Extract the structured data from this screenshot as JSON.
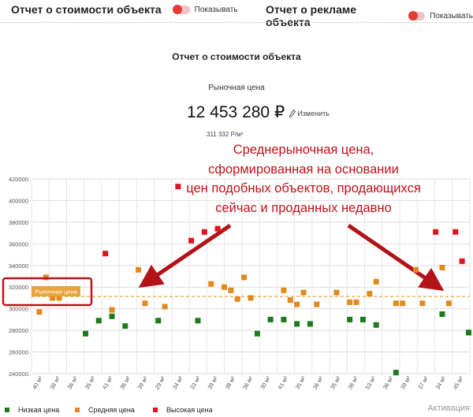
{
  "top_sections": [
    {
      "title": "Отчет о стоимости объекта",
      "toggle_label": "Показывать"
    },
    {
      "title": "Отчет о рекламе объекта",
      "toggle_label": "Показывать"
    }
  ],
  "report": {
    "title": "Отчет о стоимости объекта",
    "market_price_label": "Рыночная цена",
    "price": "12 453 280 ₽",
    "edit_label": "Изменить",
    "price_per_m2": "311 332 Р/м²"
  },
  "annotation": {
    "lines": [
      "Среднерыночная цена,",
      "сформированная на основании",
      "цен подобных объектов, продающихся",
      "сейчас и проданных недавно"
    ],
    "color": "#c0121a"
  },
  "legend": {
    "items": [
      {
        "label": "Низкая цена",
        "color": "#1b7a1b"
      },
      {
        "label": "Средняя цена",
        "color": "#e08a1e"
      },
      {
        "label": "Высокая цена",
        "color": "#e0141e"
      }
    ],
    "activation_label": "Активация"
  },
  "chart_data": {
    "type": "scatter",
    "ylim": [
      240000,
      420000
    ],
    "y_ticks": [
      240000,
      260000,
      280000,
      300000,
      320000,
      340000,
      360000,
      380000,
      400000,
      420000
    ],
    "x_tick_labels": [
      "40 м²",
      "38 м²",
      "36 м²",
      "35 м²",
      "41 м²",
      "36 м²",
      "39 м²",
      "29 м²",
      "34 м²",
      "33 м²",
      "39 м²",
      "38 м²",
      "36 м²",
      "30 м²",
      "41 м²",
      "35 м²",
      "36 м²",
      "35 м²",
      "36 м²",
      "53 м²",
      "36 м²",
      "39 м²",
      "37 м²",
      "34 м²",
      "45 м²"
    ],
    "market_price_line": {
      "value": 311332,
      "label": "Рыночная цена",
      "color": "#e8a33a"
    },
    "series": [
      {
        "name": "Низкая цена",
        "color": "#1b7a1b",
        "x": [
          8,
          10,
          12,
          14,
          19,
          25,
          34,
          36,
          38,
          40,
          42,
          48,
          50,
          52,
          55,
          62,
          66,
          66
        ],
        "y": [
          277000,
          289000,
          293000,
          284000,
          289000,
          289000,
          277000,
          290000,
          290000,
          286000,
          286000,
          290000,
          290000,
          285000,
          241000,
          295000,
          278000,
          278000
        ]
      },
      {
        "name": "Средняя цена",
        "color": "#e08a1e",
        "x": [
          1,
          2,
          3,
          4,
          12,
          16,
          17,
          20,
          27,
          29,
          30,
          31,
          32,
          33,
          38,
          39,
          40,
          41,
          43,
          46,
          48,
          49,
          51,
          52,
          55,
          56,
          58,
          59,
          62,
          63
        ],
        "y": [
          297000,
          329000,
          310000,
          310000,
          299000,
          336000,
          305000,
          302000,
          323000,
          320000,
          317000,
          309000,
          329000,
          310000,
          317000,
          308000,
          304000,
          315000,
          304000,
          315000,
          306000,
          306000,
          314000,
          325000,
          305000,
          305000,
          336000,
          305000,
          338000,
          305000
        ]
      },
      {
        "name": "Высокая цена",
        "color": "#e0141e",
        "x": [
          11,
          22,
          24,
          26,
          28,
          61,
          64,
          65
        ],
        "y": [
          351000,
          413000,
          363000,
          371000,
          374000,
          371000,
          371000,
          344000
        ]
      }
    ],
    "grid": true
  }
}
